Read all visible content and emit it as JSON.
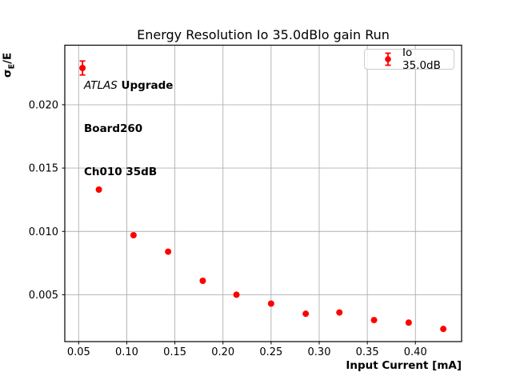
{
  "chart_data": {
    "type": "scatter",
    "title": "Energy Resolution Io 35.0dBlo gain Run",
    "xlabel": "Input Current [mA]",
    "ylabel": "σE/E",
    "ylabel_parts": {
      "base": "σ",
      "sub": "E",
      "rest": "/E"
    },
    "xlim": [
      0.0356,
      0.448
    ],
    "ylim": [
      0.0013,
      0.0247
    ],
    "grid": true,
    "xticks": [
      {
        "v": 0.05,
        "label": "0.05"
      },
      {
        "v": 0.1,
        "label": "0.10"
      },
      {
        "v": 0.15,
        "label": "0.15"
      },
      {
        "v": 0.2,
        "label": "0.20"
      },
      {
        "v": 0.25,
        "label": "0.25"
      },
      {
        "v": 0.3,
        "label": "0.30"
      },
      {
        "v": 0.35,
        "label": "0.35"
      },
      {
        "v": 0.4,
        "label": "0.40"
      }
    ],
    "yticks": [
      {
        "v": 0.005,
        "label": "0.005"
      },
      {
        "v": 0.01,
        "label": "0.010"
      },
      {
        "v": 0.015,
        "label": "0.015"
      },
      {
        "v": 0.02,
        "label": "0.020"
      }
    ],
    "colors": {
      "marker": "#ff0000",
      "grid": "#b0b0b0",
      "spine": "#000000",
      "legend_border": "#cccccc"
    },
    "legend": {
      "label": "Io 35.0dB",
      "position": "top-right"
    },
    "annotation": {
      "line1_italic": "ATLAS",
      "line1_bold": " Upgrade",
      "line2": "Board260",
      "line3": "Ch010 35dB"
    },
    "series": [
      {
        "name": "Io 35.0dB",
        "color": "#ff0000",
        "x": [
          0.054,
          0.071,
          0.107,
          0.143,
          0.179,
          0.214,
          0.25,
          0.286,
          0.321,
          0.357,
          0.393,
          0.429
        ],
        "y": [
          0.0229,
          0.0133,
          0.0097,
          0.0084,
          0.0061,
          0.005,
          0.0043,
          0.0035,
          0.0036,
          0.003,
          0.0028,
          0.0023
        ],
        "yerr": [
          0.00055,
          0,
          0,
          0,
          0,
          0,
          0,
          0,
          0,
          0,
          0,
          0
        ]
      }
    ]
  }
}
